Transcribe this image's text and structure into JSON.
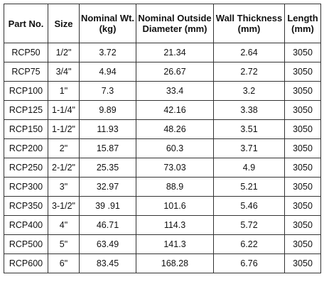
{
  "table": {
    "columns": [
      [
        "Part No."
      ],
      [
        "Size"
      ],
      [
        "Nominal Wt.",
        "(kg)"
      ],
      [
        "Nominal Outside",
        "Diameter (mm)"
      ],
      [
        "Wall Thickness",
        "(mm)"
      ],
      [
        "Length",
        "(mm)"
      ]
    ],
    "rows": [
      [
        "RCP50",
        "1/2\"",
        "3.72",
        "21.34",
        "2.64",
        "3050"
      ],
      [
        "RCP75",
        "3/4\"",
        "4.94",
        "26.67",
        "2.72",
        "3050"
      ],
      [
        "RCP100",
        "1\"",
        "7.3",
        "33.4",
        "3.2",
        "3050"
      ],
      [
        "RCP125",
        "1-1/4\"",
        "9.89",
        "42.16",
        "3.38",
        "3050"
      ],
      [
        "RCP150",
        "1-1/2\"",
        "11.93",
        "48.26",
        "3.51",
        "3050"
      ],
      [
        "RCP200",
        "2\"",
        "15.87",
        "60.3",
        "3.71",
        "3050"
      ],
      [
        "RCP250",
        "2-1/2\"",
        "25.35",
        "73.03",
        "4.9",
        "3050"
      ],
      [
        "RCP300",
        "3\"",
        "32.97",
        "88.9",
        "5.21",
        "3050"
      ],
      [
        "RCP350",
        "3-1/2\"",
        "39 .91",
        "101.6",
        "5.46",
        "3050"
      ],
      [
        "RCP400",
        "4\"",
        "46.71",
        "114.3",
        "5.72",
        "3050"
      ],
      [
        "RCP500",
        "5\"",
        "63.49",
        "141.3",
        "6.22",
        "3050"
      ],
      [
        "RCP600",
        "6\"",
        "83.45",
        "168.28",
        "6.76",
        "3050"
      ]
    ]
  }
}
